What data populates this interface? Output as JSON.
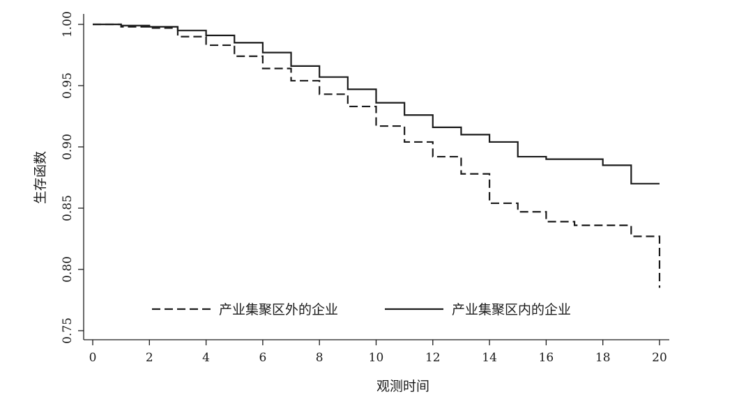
{
  "chart_data": {
    "type": "line",
    "step": true,
    "xlabel": "观测时间",
    "ylabel": "生存函数",
    "xlim": [
      0,
      20
    ],
    "ylim": [
      0.75,
      1.0
    ],
    "x_ticks": [
      0,
      2,
      4,
      6,
      8,
      10,
      12,
      14,
      16,
      18,
      20
    ],
    "y_ticks": [
      "0.75",
      "0.80",
      "0.85",
      "0.90",
      "0.95",
      "1.00"
    ],
    "grid": false,
    "legend_position": "bottom-center",
    "series": [
      {
        "name": "产业集聚区外的企业",
        "style": "dashed",
        "color": "#1a1a1a",
        "x": [
          0,
          1,
          2,
          3,
          4,
          5,
          6,
          7,
          8,
          9,
          10,
          11,
          12,
          13,
          14,
          15,
          16,
          17,
          19,
          20,
          20
        ],
        "y": [
          1.0,
          0.998,
          0.997,
          0.99,
          0.983,
          0.974,
          0.964,
          0.954,
          0.943,
          0.933,
          0.917,
          0.904,
          0.892,
          0.878,
          0.854,
          0.847,
          0.839,
          0.836,
          0.827,
          0.827,
          0.785
        ]
      },
      {
        "name": "产业集聚区内的企业",
        "style": "solid",
        "color": "#1a1a1a",
        "x": [
          0,
          1,
          2,
          3,
          4,
          5,
          6,
          7,
          8,
          9,
          10,
          11,
          12,
          13,
          14,
          15,
          16,
          18,
          19,
          20
        ],
        "y": [
          1.0,
          0.999,
          0.998,
          0.995,
          0.991,
          0.985,
          0.977,
          0.966,
          0.957,
          0.947,
          0.936,
          0.926,
          0.916,
          0.91,
          0.904,
          0.892,
          0.89,
          0.885,
          0.87,
          0.87
        ]
      }
    ]
  }
}
